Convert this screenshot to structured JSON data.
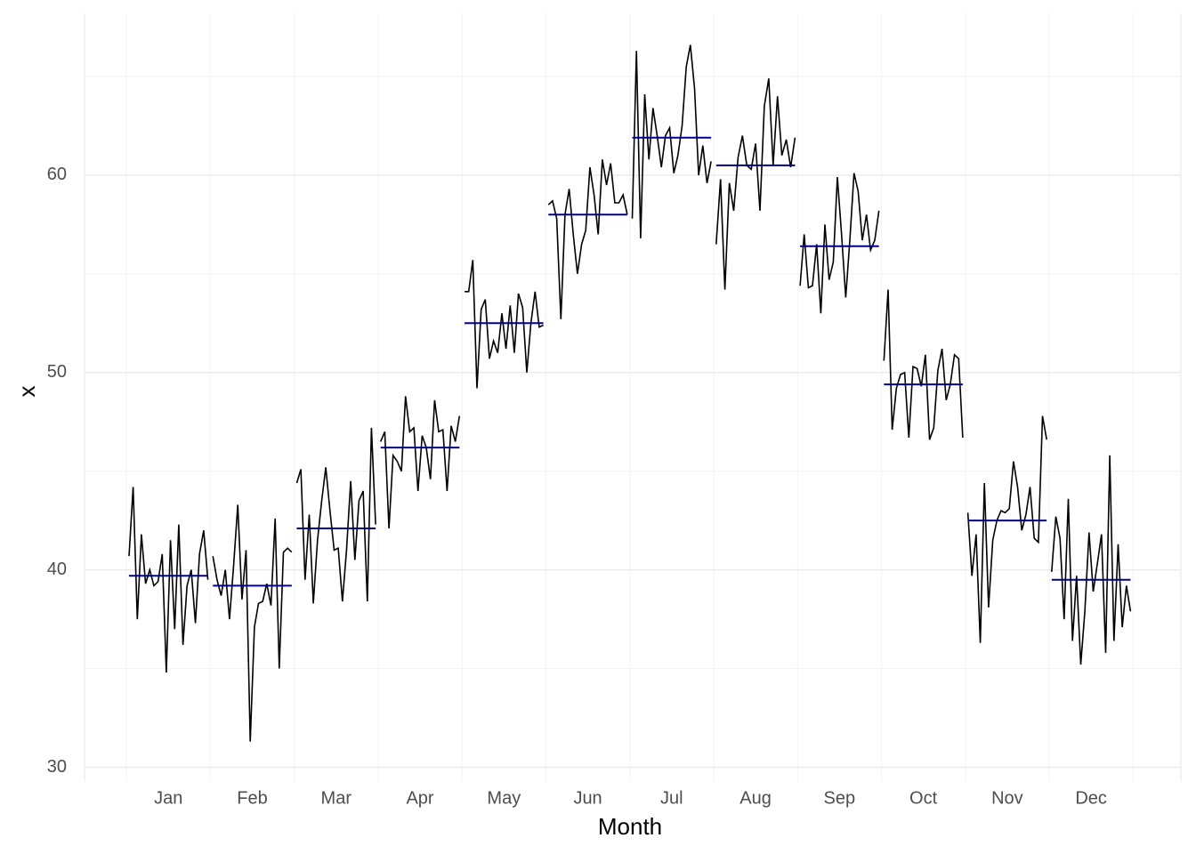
{
  "chart_data": {
    "type": "subseries",
    "x_label": "Month",
    "y_label": "x",
    "categories": [
      "Jan",
      "Feb",
      "Mar",
      "Apr",
      "May",
      "Jun",
      "Jul",
      "Aug",
      "Sep",
      "Oct",
      "Nov",
      "Dec"
    ],
    "line_color": "#000000",
    "mean_color": "#00008b",
    "ylim": [
      29.3,
      68.2
    ],
    "yticks": [
      30,
      40,
      50,
      60
    ],
    "yminor": [
      35,
      45,
      55,
      65
    ],
    "xlim": [
      0,
      13.07
    ],
    "grid": true,
    "months": [
      {
        "values": [
          40.7,
          44.2,
          37.5,
          41.8,
          39.3,
          40.0,
          39.2,
          39.4,
          40.8,
          34.8,
          41.5,
          37.0,
          42.3,
          36.2,
          39.2,
          40.0,
          37.3,
          40.8,
          42.0,
          39.5
        ],
        "mean": 39.7
      },
      {
        "values": [
          40.7,
          39.5,
          38.7,
          40.0,
          37.5,
          40.2,
          43.3,
          38.5,
          41.0,
          31.3,
          37.1,
          38.3,
          38.4,
          39.3,
          38.2,
          42.6,
          35.0,
          40.9,
          41.1,
          40.9
        ],
        "mean": 39.2
      },
      {
        "values": [
          44.4,
          45.1,
          39.5,
          42.8,
          38.3,
          41.5,
          43.5,
          45.2,
          43.0,
          41.0,
          41.1,
          38.4,
          41.0,
          44.5,
          40.5,
          43.5,
          44.0,
          38.4,
          47.2,
          42.3
        ],
        "mean": 42.1
      },
      {
        "values": [
          46.5,
          47.0,
          42.1,
          45.8,
          45.5,
          45.0,
          48.8,
          47.0,
          47.2,
          44.0,
          46.8,
          46.2,
          44.6,
          48.6,
          47.0,
          47.1,
          44.0,
          47.3,
          46.5,
          47.8
        ],
        "mean": 46.2
      },
      {
        "values": [
          54.1,
          54.1,
          55.7,
          49.2,
          53.2,
          53.7,
          50.7,
          51.6,
          51.0,
          53.0,
          51.2,
          53.4,
          51.0,
          54.0,
          53.3,
          50.0,
          52.5,
          54.1,
          52.3,
          52.4
        ],
        "mean": 52.5
      },
      {
        "values": [
          58.5,
          58.7,
          57.8,
          52.7,
          58.0,
          59.3,
          57.0,
          55.0,
          56.5,
          57.2,
          60.4,
          59.0,
          57.0,
          60.8,
          59.5,
          60.6,
          58.6,
          58.6,
          59.0,
          58.0
        ],
        "mean": 58.0
      },
      {
        "values": [
          57.8,
          66.3,
          56.8,
          64.1,
          60.8,
          63.4,
          62.0,
          60.4,
          62.0,
          62.4,
          60.1,
          61.0,
          62.5,
          65.5,
          66.6,
          64.4,
          60.0,
          61.5,
          59.6,
          60.7
        ],
        "mean": 61.9
      },
      {
        "values": [
          56.5,
          59.8,
          54.2,
          59.6,
          58.2,
          60.9,
          62.0,
          60.5,
          60.3,
          61.6,
          58.2,
          63.5,
          64.9,
          60.5,
          64.0,
          61.0,
          61.8,
          60.4,
          61.9
        ],
        "mean": 60.5
      },
      {
        "values": [
          54.4,
          57.0,
          54.3,
          54.4,
          56.5,
          53.0,
          57.5,
          54.7,
          55.6,
          59.9,
          57.0,
          53.8,
          56.7,
          60.1,
          59.2,
          56.7,
          58.0,
          56.2,
          56.7,
          58.2
        ],
        "mean": 56.4
      },
      {
        "values": [
          50.6,
          54.2,
          47.1,
          49.2,
          49.9,
          50.0,
          46.7,
          50.3,
          50.2,
          49.3,
          50.9,
          46.6,
          47.2,
          50.1,
          51.2,
          48.6,
          49.4,
          50.9,
          50.7,
          46.7
        ],
        "mean": 49.4
      },
      {
        "values": [
          42.9,
          39.7,
          41.8,
          36.3,
          44.4,
          38.1,
          41.5,
          42.5,
          43.0,
          42.9,
          43.1,
          45.5,
          44.2,
          42.0,
          42.8,
          44.2,
          41.6,
          41.4,
          47.8,
          46.6
        ],
        "mean": 42.5
      },
      {
        "values": [
          39.9,
          42.7,
          41.6,
          37.5,
          43.6,
          36.4,
          39.7,
          35.2,
          37.9,
          41.9,
          38.9,
          40.3,
          41.8,
          35.8,
          45.8,
          36.4,
          41.3,
          37.1,
          39.2,
          37.9
        ],
        "mean": 39.5
      }
    ]
  }
}
